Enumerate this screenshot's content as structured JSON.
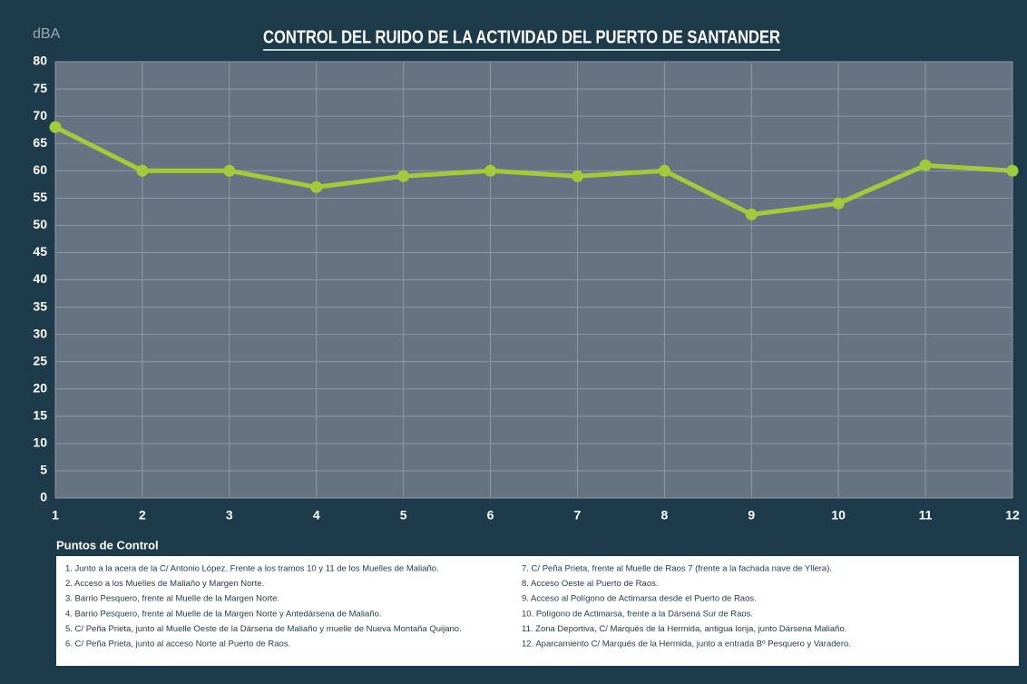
{
  "chart_data": {
    "type": "line",
    "title": "CONTROL DEL RUIDO DE LA ACTIVIDAD DEL PUERTO DE SANTANDER",
    "y_label": "dBA",
    "x_label": "Puntos de Control",
    "x": [
      1,
      2,
      3,
      4,
      5,
      6,
      7,
      8,
      9,
      10,
      11,
      12
    ],
    "xlim": [
      1,
      12
    ],
    "xticks": [
      1,
      2,
      3,
      4,
      5,
      6,
      7,
      8,
      9,
      10,
      11,
      12
    ],
    "ylim": [
      0,
      80
    ],
    "yticks": [
      0,
      5,
      10,
      15,
      20,
      25,
      30,
      35,
      40,
      45,
      50,
      55,
      60,
      65,
      70,
      75,
      80
    ],
    "grid": true,
    "series": [
      {
        "color": "#a2cb3a",
        "values": [
          68,
          60,
          60,
          57,
          59,
          60,
          59,
          60,
          52,
          54,
          61,
          60
        ]
      }
    ],
    "notes": [
      "1. Junto a la acera de la C/ Antonio López. Frente a los tramos 10 y 11 de los Muelles de Maliaño.",
      "2. Acceso a los Muelles de Maliaño y Margen Norte.",
      "3. Barrio Pesquero, frente al Muelle de la Margen Norte.",
      "4. Barrio Pesquero, frente al Muelle de la Margen Norte y Antedársena de Maliaño.",
      "5. C/ Peña Prieta, junto al Muelle Oeste de la Dársena de Maliaño y muelle de Nueva Montaña Quijano.",
      "6. C/ Peña Prieta, junto al acceso Norte al Puerto de Raos.",
      "7. C/ Peña Prieta, frente al Muelle de Raos 7 (frente a la fachada nave de Yllera).",
      "8. Acceso Oeste al Puerto de Raos.",
      "9. Acceso al Polígono de Actimarsa desde el Puerto de Raos.",
      "10. Polígono de Actimarsa, frente a la Dársena Sur de Raos.",
      "11. Zona Deportiva, C/ Marqués de la Hermida, antigua lonja, junto Dársena Maliaño.",
      "12. Aparcamiento C/ Marqués de la Hermida, junto a entrada Bº Pesquero y Varadero."
    ]
  }
}
